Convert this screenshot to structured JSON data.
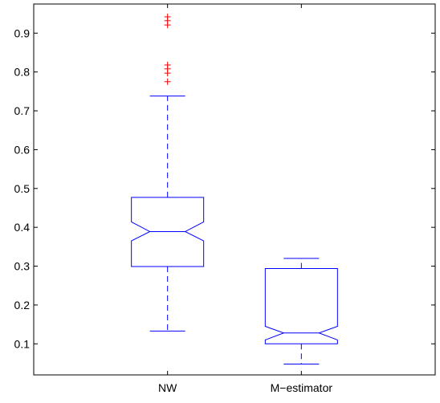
{
  "chart_data": {
    "type": "boxplot",
    "notched": true,
    "categories": [
      "NW",
      "M−estimator"
    ],
    "ylim": [
      0.02,
      0.975
    ],
    "yticks": [
      0.1,
      0.2,
      0.3,
      0.4,
      0.5,
      0.6,
      0.7,
      0.8,
      0.9
    ],
    "ytick_labels": [
      "0.1",
      "0.2",
      "0.3",
      "0.4",
      "0.5",
      "0.6",
      "0.7",
      "0.8",
      "0.9"
    ],
    "grid": false,
    "boxes": [
      {
        "category": "NW",
        "whisker_low": 0.133,
        "q1": 0.299,
        "median": 0.389,
        "q3": 0.477,
        "whisker_high": 0.738,
        "notch_low": 0.365,
        "notch_high": 0.414,
        "outliers": [
          0.775,
          0.797,
          0.808,
          0.818,
          0.921,
          0.932,
          0.942
        ]
      },
      {
        "category": "M−estimator",
        "whisker_low": 0.048,
        "q1": 0.1,
        "median": 0.128,
        "q3": 0.294,
        "whisker_high": 0.32,
        "notch_low": 0.11,
        "notch_high": 0.145,
        "outliers": []
      }
    ],
    "colors": {
      "box": "#0000ff",
      "outlier": "#ff0000",
      "axes": "#000000"
    }
  }
}
